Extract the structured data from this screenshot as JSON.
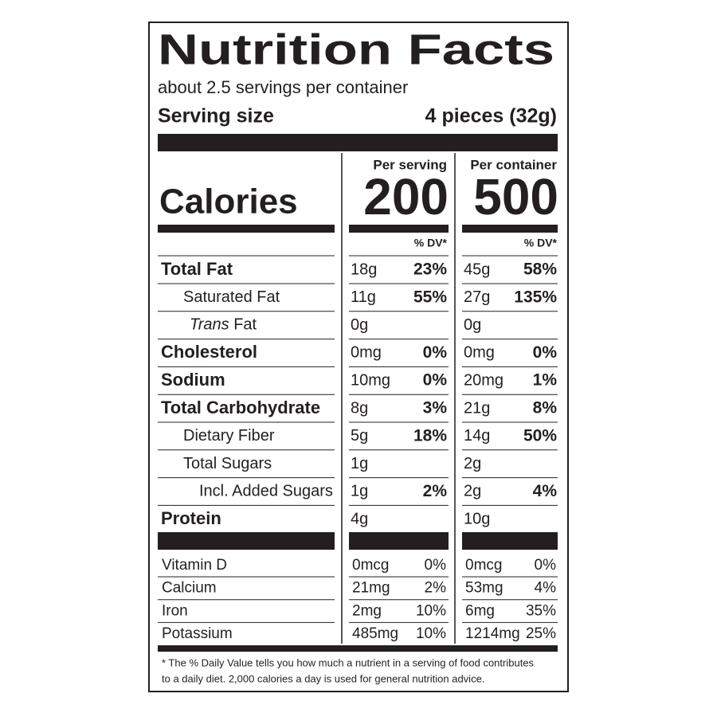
{
  "title": "Nutrition Facts",
  "servings": "about 2.5 servings per container",
  "serving_size_label": "Serving size",
  "serving_size": "4 pieces (32g)",
  "calories_label": "Calories",
  "columns": [
    {
      "header": "Per serving",
      "calories": "200",
      "dv_header": "% DV*"
    },
    {
      "header": "Per container",
      "calories": "500",
      "dv_header": "% DV*"
    }
  ],
  "nutrients": [
    {
      "name": "Total Fat",
      "level": 0,
      "values": [
        [
          "18g",
          "23%"
        ],
        [
          "45g",
          "58%"
        ]
      ]
    },
    {
      "name": "Saturated Fat",
      "level": 1,
      "values": [
        [
          "11g",
          "55%"
        ],
        [
          "27g",
          "135%"
        ]
      ]
    },
    {
      "name_italic": "Trans",
      "name": "Fat",
      "level": 1,
      "values": [
        [
          "0g",
          null
        ],
        [
          "0g",
          null
        ]
      ]
    },
    {
      "name": "Cholesterol",
      "level": 0,
      "values": [
        [
          "0mg",
          "0%"
        ],
        [
          "0mg",
          "0%"
        ]
      ]
    },
    {
      "name": "Sodium",
      "level": 0,
      "values": [
        [
          "10mg",
          "0%"
        ],
        [
          "20mg",
          "1%"
        ]
      ]
    },
    {
      "name": "Total Carbohydrate",
      "level": 0,
      "values": [
        [
          "8g",
          "3%"
        ],
        [
          "21g",
          "8%"
        ]
      ]
    },
    {
      "name": "Dietary Fiber",
      "level": 1,
      "values": [
        [
          "5g",
          "18%"
        ],
        [
          "14g",
          "50%"
        ]
      ]
    },
    {
      "name": "Total Sugars",
      "level": 1,
      "values": [
        [
          "1g",
          null
        ],
        [
          "2g",
          null
        ]
      ]
    },
    {
      "name": "Incl. Added Sugars",
      "level": 2,
      "values": [
        [
          "1g",
          "2%"
        ],
        [
          "2g",
          "4%"
        ]
      ]
    },
    {
      "name": "Protein",
      "level": 0,
      "values": [
        [
          "4g",
          null
        ],
        [
          "10g",
          null
        ]
      ]
    }
  ],
  "vitamins": [
    {
      "name": "Vitamin D",
      "values": [
        [
          "0mcg",
          "0%"
        ],
        [
          "0mcg",
          "0%"
        ]
      ]
    },
    {
      "name": "Calcium",
      "values": [
        [
          "21mg",
          "2%"
        ],
        [
          "53mg",
          "4%"
        ]
      ]
    },
    {
      "name": "Iron",
      "values": [
        [
          "2mg",
          "10%"
        ],
        [
          "6mg",
          "35%"
        ]
      ]
    },
    {
      "name": "Potassium",
      "values": [
        [
          "485mg",
          "10%"
        ],
        [
          "1214mg",
          "25%"
        ]
      ]
    }
  ],
  "footnote": [
    "* The % Daily Value tells you how much a nutrient in a serving of food contributes",
    "to a daily diet. 2,000 calories a day is used for general nutrition advice."
  ]
}
